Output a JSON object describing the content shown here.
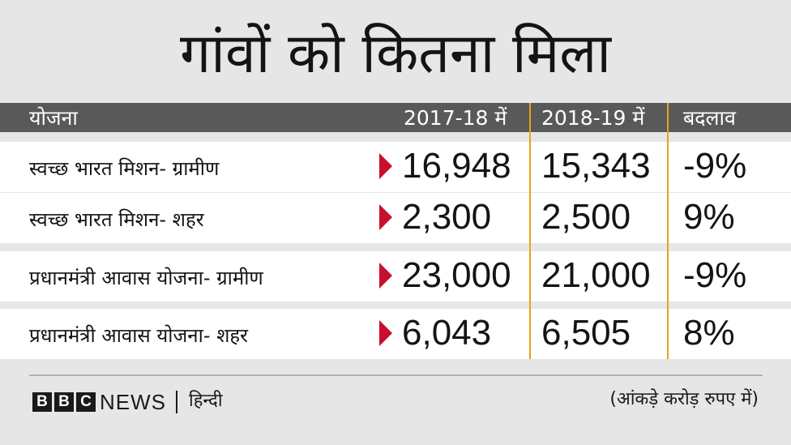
{
  "title": "गांवों को कितना मिला",
  "header": {
    "scheme": "योजना",
    "year1": "2017-18 में",
    "year2": "2018-19 में",
    "change": "बदलाव"
  },
  "rows": [
    {
      "name": "स्वच्छ भारत मिशन- ग्रामीण",
      "v1": "16,948",
      "v2": "15,343",
      "change": "-9%"
    },
    {
      "name": "स्वच्छ भारत मिशन- शहर",
      "v1": "2,300",
      "v2": "2,500",
      "change": "9%"
    },
    {
      "name": "प्रधानमंत्री आवास योजना- ग्रामीण",
      "v1": "23,000",
      "v2": "21,000",
      "change": "-9%"
    },
    {
      "name": "प्रधानमंत्री आवास योजना- शहर",
      "v1": "6,043",
      "v2": "6,505",
      "change": "8%"
    }
  ],
  "footer": {
    "logo_letters": [
      "B",
      "B",
      "C"
    ],
    "news": "NEWS",
    "language": "हिन्दी",
    "note": "(आंकड़े करोड़ रुपए में)"
  },
  "colors": {
    "background": "#e6e6e6",
    "header": "#595959",
    "row": "#ffffff",
    "arrow": "#c8102e",
    "divider": "#e8a317"
  }
}
